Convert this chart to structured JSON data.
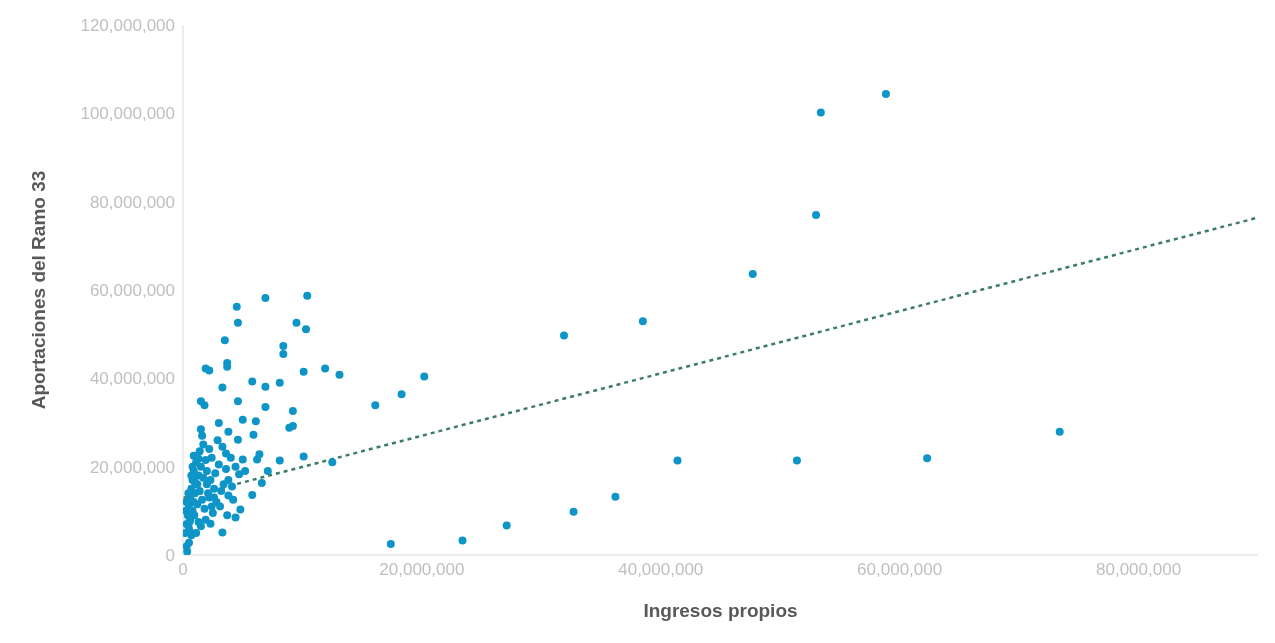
{
  "chart_data": {
    "type": "scatter",
    "xlabel": "Ingresos propios",
    "ylabel": "Aportaciones del Ramo 33",
    "xlim": [
      0,
      90000000
    ],
    "ylim": [
      0,
      120000000
    ],
    "xticks": [
      0,
      {
        "value": 20000000,
        "label": "20,000,000"
      },
      {
        "value": 40000000,
        "label": "40,000,000"
      },
      {
        "value": 60000000,
        "label": "60,000,000"
      },
      {
        "value": 80000000,
        "label": "80,000,000"
      }
    ],
    "yticks": [
      0,
      {
        "value": 20000000,
        "label": "20,000,000"
      },
      {
        "value": 40000000,
        "label": "40,000,000"
      },
      {
        "value": 60000000,
        "label": "60,000,000"
      },
      {
        "value": 80000000,
        "label": "80,000,000"
      },
      {
        "value": 100000000,
        "label": "100,000,000"
      },
      {
        "value": 120000000,
        "label": "120,000,000"
      }
    ],
    "legend": false,
    "marker": "circle",
    "series": [
      {
        "color": "#0e95c7",
        "x": [
          58850000,
          53400000,
          53000000,
          47700000,
          38500000,
          31900000,
          73400000,
          62300000,
          51400000,
          41400000,
          36200000,
          32700000,
          27100000,
          23400000,
          17400000,
          20200000,
          18300000,
          16100000,
          13100000,
          11900000,
          12500000,
          10400000,
          10300000,
          10100000,
          10100000,
          9500000,
          9200000,
          9200000,
          8900000,
          8400000,
          8400000,
          8100000,
          8100000,
          6900000,
          6900000,
          6900000,
          6600000,
          5800000,
          5800000,
          4500000,
          4600000,
          3500000,
          3700000,
          3700000,
          1900000,
          2200000,
          3300000,
          1500000,
          1800000,
          4600000,
          3000000,
          5000000,
          6100000,
          5900000,
          4600000,
          3800000,
          3600000,
          6400000,
          5000000,
          4700000,
          3800000,
          4800000,
          4400000,
          3300000,
          2300000,
          7100000,
          6200000,
          300000,
          200000,
          500000,
          300000,
          600000,
          400000,
          800000,
          500000,
          900000,
          600000,
          1000000,
          700000,
          1200000,
          800000,
          1300000,
          900000,
          1500000,
          1100000,
          900000,
          1400000,
          1700000,
          1600000,
          1500000,
          2000000,
          2300000,
          2600000,
          2200000,
          2800000,
          3100000,
          2500000,
          1900000,
          1500000,
          1100000,
          700000,
          350000,
          500000,
          600000,
          1300000,
          1800000,
          2100000,
          2700000,
          3000000,
          3400000,
          3800000,
          4200000,
          3600000,
          4000000,
          3300000,
          2400000,
          1900000,
          2900000,
          4400000,
          5200000,
          1200000,
          950000,
          1600000,
          2400000,
          450000,
          700000,
          1000000,
          300000,
          250000,
          550000,
          1400000,
          2000000,
          2600000,
          1700000,
          3200000,
          4100000,
          800000,
          1300000,
          2200000,
          3700000
        ],
        "values": [
          104400000,
          100200000,
          77000000,
          63600000,
          52900000,
          49700000,
          27900000,
          21900000,
          21400000,
          21400000,
          13200000,
          9800000,
          6700000,
          3300000,
          2500000,
          40400000,
          36400000,
          33900000,
          40800000,
          42200000,
          21000000,
          58700000,
          51100000,
          41500000,
          22300000,
          52600000,
          32600000,
          29200000,
          28800000,
          47300000,
          45500000,
          39000000,
          21400000,
          58200000,
          38100000,
          33500000,
          16300000,
          39300000,
          13600000,
          56200000,
          52600000,
          48600000,
          43500000,
          42600000,
          42200000,
          41800000,
          37900000,
          34800000,
          33900000,
          34800000,
          29900000,
          30600000,
          30300000,
          27200000,
          26100000,
          27900000,
          23000000,
          22800000,
          21600000,
          18300000,
          17000000,
          10300000,
          8500000,
          5100000,
          7100000,
          19000000,
          21600000,
          2000000,
          5000000,
          6000000,
          7000000,
          8000000,
          9000000,
          10000000,
          11000000,
          12000000,
          13000000,
          14000000,
          15000000,
          16000000,
          17000000,
          18000000,
          19000000,
          20000000,
          21000000,
          22500000,
          23500000,
          25000000,
          27000000,
          28500000,
          19000000,
          17000000,
          15000000,
          13000000,
          12000000,
          11000000,
          9500000,
          8000000,
          6500000,
          5000000,
          4500000,
          800000,
          2800000,
          5200000,
          7500000,
          10500000,
          14000000,
          18500000,
          20500000,
          16000000,
          13500000,
          12500000,
          19500000,
          22000000,
          24500000,
          22000000,
          21500000,
          26000000,
          20000000,
          19000000,
          11500000,
          9000000,
          12500000,
          11000000,
          14000000,
          18000000,
          16500000,
          12000000,
          10000000,
          7500000,
          14500000,
          16000000,
          13000000,
          17500000,
          14500000,
          15500000,
          20000000,
          21800000,
          24000000,
          9000000
        ]
      },
      {
        "type": "line",
        "color": "#3d7d62",
        "line_style": "dashed",
        "marker": "none",
        "x": [
          0,
          90000000
        ],
        "values": [
          12900000,
          76400000
        ]
      }
    ]
  }
}
